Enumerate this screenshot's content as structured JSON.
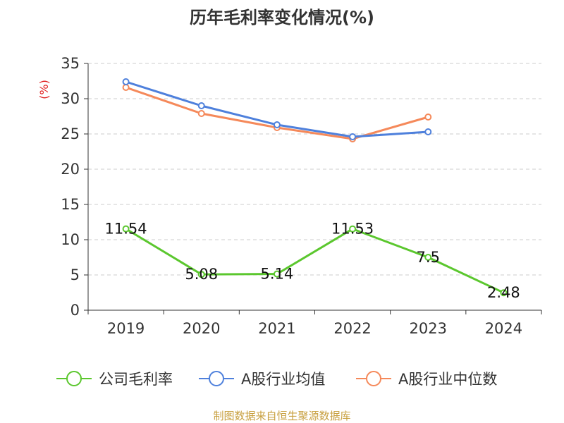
{
  "chart_data": {
    "type": "line",
    "title": "历年毛利率变化情况(%)",
    "unit_label": "(%)",
    "categories": [
      "2019",
      "2020",
      "2021",
      "2022",
      "2023",
      "2024"
    ],
    "ylim": [
      0,
      35
    ],
    "yticks": [
      0,
      5,
      10,
      15,
      20,
      25,
      30,
      35
    ],
    "grid": true,
    "legend_position": "bottom",
    "series": [
      {
        "name": "公司毛利率",
        "color": "#5bc72e",
        "values": [
          11.54,
          5.08,
          5.14,
          11.53,
          7.5,
          2.48
        ],
        "labels": [
          "11.54",
          "5.08",
          "5.14",
          "11.53",
          "7.5",
          "2.48"
        ]
      },
      {
        "name": "A股行业均值",
        "color": "#4e80dc",
        "values": [
          32.4,
          29.0,
          26.3,
          24.6,
          25.3,
          null
        ]
      },
      {
        "name": "A股行业中位数",
        "color": "#f5895a",
        "values": [
          31.6,
          27.9,
          25.9,
          24.3,
          27.4,
          null
        ]
      }
    ]
  },
  "footer": {
    "source": "制图数据来自恒生聚源数据库"
  }
}
